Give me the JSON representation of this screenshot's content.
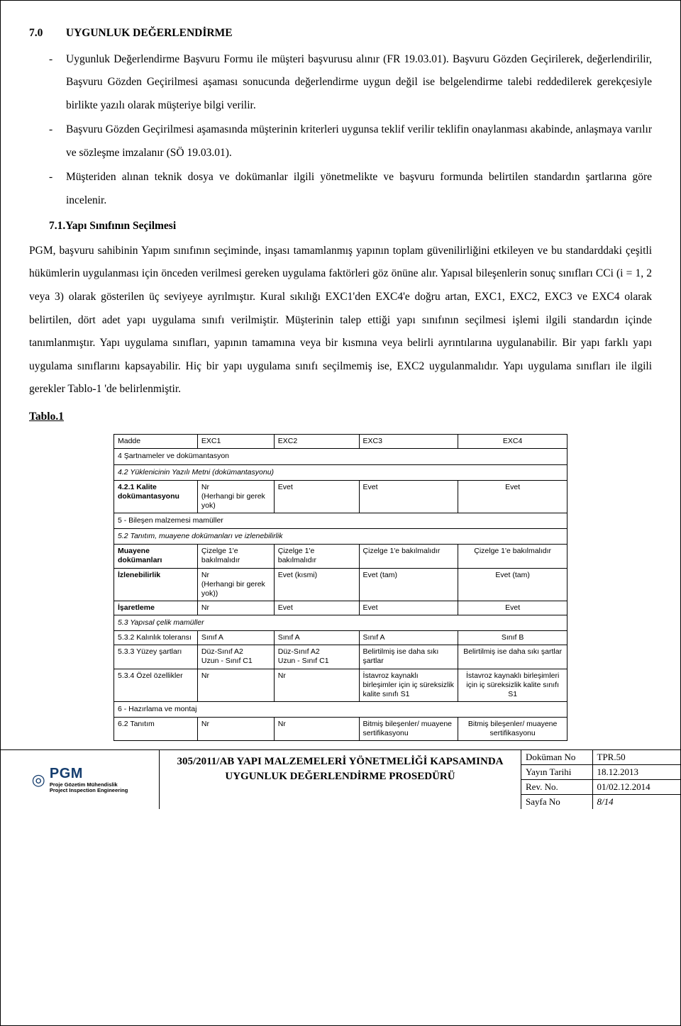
{
  "section": {
    "num": "7.0",
    "title": "UYGUNLUK DEĞERLENDİRME",
    "bullets": [
      "Uygunluk Değerlendirme Başvuru Formu ile müşteri başvurusu alınır (FR 19.03.01). Başvuru Gözden Geçirilerek, değerlendirilir, Başvuru Gözden Geçirilmesi aşaması sonucunda değerlendirme uygun değil ise belgelendirme talebi reddedilerek gerekçesiyle birlikte yazılı olarak müşteriye bilgi verilir.",
      "Başvuru Gözden Geçirilmesi aşamasında müşterinin kriterleri uygunsa teklif verilir teklifin onaylanması akabinde, anlaşmaya varılır ve sözleşme imzalanır (SÖ 19.03.01).",
      "Müşteriden alınan teknik dosya ve dokümanlar ilgili yönetmelikte ve başvuru formunda belirtilen standardın şartlarına göre incelenir."
    ],
    "sub": {
      "num": "7.1.",
      "title": "Yapı Sınıfının Seçilmesi"
    },
    "body": "PGM, başvuru sahibinin Yapım sınıfının seçiminde, inşası tamamlanmış yapının toplam güvenilirliğini etkileyen ve bu standarddaki çeşitli hükümlerin uygulanması için önceden verilmesi gereken uygulama faktörleri göz önüne alır. Yapısal bileşenlerin sonuç sınıfları CCi (i = 1, 2 veya 3) olarak gösterilen üç seviyeye ayrılmıştır. Kural sıkılığı EXC1'den EXC4'e doğru artan, EXC1, EXC2, EXC3 ve EXC4 olarak belirtilen, dört adet yapı uygulama sınıfı verilmiştir. Müşterinin talep ettiği yapı sınıfının seçilmesi işlemi ilgili standardın içinde tanımlanmıştır. Yapı uygulama sınıfları, yapının tamamına veya bir kısmına veya belirli ayrıntılarına uygulanabilir. Bir yapı farklı yapı uygulama sınıflarını kapsayabilir. Hiç bir yapı uygulama sınıfı seçilmemiş ise, EXC2 uygulanmalıdır. Yapı uygulama sınıfları ile ilgili gerekler Tablo-1 'de belirlenmiştir.",
    "tabloLabel": "Tablo.1"
  },
  "tablo1": {
    "header": [
      "Madde",
      "EXC1",
      "EXC2",
      "EXC3",
      "EXC4"
    ],
    "rows": [
      {
        "type": "sect",
        "text": "4 Şartnameler ve dokümantasyon"
      },
      {
        "type": "sect",
        "italic": true,
        "text": "4.2 Yüklenicinin Yazılı Metni (dokümantasyonu)"
      },
      {
        "type": "row",
        "bold0": true,
        "cells": [
          "4.2.1 Kalite dokümantasyonu",
          "Nr\n(Herhangi bir gerek yok)",
          "Evet",
          "Evet",
          "Evet"
        ]
      },
      {
        "type": "sect",
        "text": "5 - Bileşen malzemesi mamüller"
      },
      {
        "type": "sect",
        "italic": true,
        "text": "5.2 Tanıtım, muayene dokümanları ve izlenebilirlik"
      },
      {
        "type": "row",
        "bold0": true,
        "cells": [
          "Muayene dokümanları",
          "Çizelge 1'e bakılmalıdır",
          "Çizelge 1'e bakılmalıdır",
          "Çizelge 1'e bakılmalıdır",
          "Çizelge 1'e bakılmalıdır"
        ]
      },
      {
        "type": "row",
        "bold0": true,
        "cells": [
          "İzlenebilirlik",
          "Nr\n(Herhangi bir gerek yok))",
          "Evet (kısmi)",
          "Evet (tam)",
          "Evet (tam)"
        ]
      },
      {
        "type": "row",
        "bold0": true,
        "cells": [
          "İşaretleme",
          "Nr",
          "Evet",
          "Evet",
          "Evet"
        ]
      },
      {
        "type": "sect",
        "italic": true,
        "text": "5.3 Yapısal çelik mamüller"
      },
      {
        "type": "row",
        "cells": [
          "5.3.2 Kalınlık toleransı",
          "Sınıf A",
          "Sınıf A",
          "Sınıf A",
          "Sınıf B"
        ]
      },
      {
        "type": "row",
        "cells": [
          "5.3.3 Yüzey şartları",
          "Düz-Sınıf A2\nUzun - Sınıf C1",
          "Düz-Sınıf A2\nUzun - Sınıf C1",
          "Belirtilmiş ise daha sıkı şartlar",
          "Belirtilmiş ise daha sıkı şartlar"
        ]
      },
      {
        "type": "row",
        "cells": [
          "5.3.4 Özel özellikler",
          "Nr",
          "Nr",
          "İstavroz kaynaklı birleşimler için iç süreksizlik kalite sınıfı S1",
          "İstavroz kaynaklı birleşimleri için iç süreksizlik kalite sınıfı S1"
        ]
      },
      {
        "type": "sect",
        "text": "6 - Hazırlama ve montaj"
      },
      {
        "type": "row",
        "cells": [
          "6.2 Tanıtım",
          "Nr",
          "Nr",
          "Bitmiş bileşenler/ muayene sertifikasyonu",
          "Bitmiş bileşenler/ muayene sertifikasyonu"
        ]
      }
    ]
  },
  "footer": {
    "logo": {
      "brand": "PGM",
      "line1": "Proje Gözetim Mühendislik",
      "line2": "Project Inspection Engineering"
    },
    "title": "305/2011/AB YAPI MALZEMELERİ YÖNETMELİĞİ KAPSAMINDA UYGUNLUK DEĞERLENDİRME PROSEDÜRÜ",
    "meta": [
      {
        "k": "Doküman No",
        "v": "TPR.50"
      },
      {
        "k": "Yayın Tarihi",
        "v": "18.12.2013"
      },
      {
        "k": "Rev. No.",
        "v": "01/02.12.2014"
      },
      {
        "k": "Sayfa No",
        "v": "8/14"
      }
    ]
  }
}
